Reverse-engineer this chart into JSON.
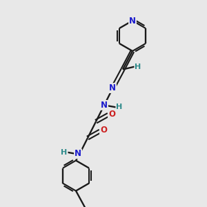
{
  "background_color": "#e8e8e8",
  "bond_color": "#1a1a1a",
  "atom_colors": {
    "N": "#1a1acc",
    "O": "#cc2020",
    "H": "#2e8b8b",
    "C": "#1a1a1a"
  },
  "figsize": [
    3.0,
    3.0
  ],
  "dpi": 100
}
